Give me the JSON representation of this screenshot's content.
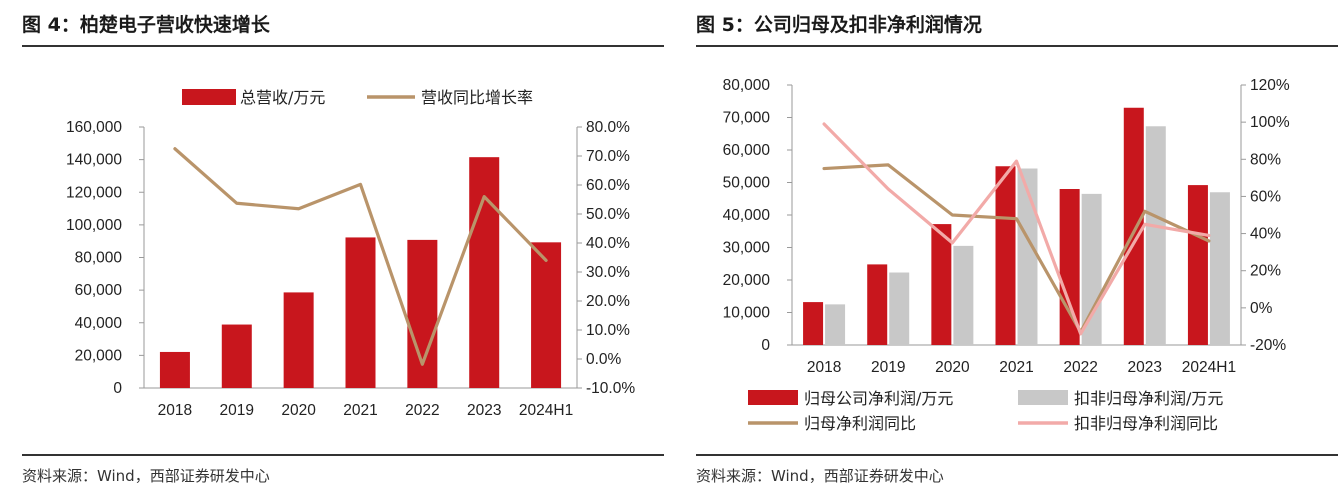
{
  "panels": [
    {
      "title": "图 4：柏楚电子营收快速增长",
      "source": "资料来源：Wind，西部证券研发中心"
    },
    {
      "title": "图 5：公司归母及扣非净利润情况",
      "source": "资料来源：Wind，西部证券研发中心"
    }
  ],
  "chart_data": [
    {
      "type": "bar",
      "title": "图 4：柏楚电子营收快速增长",
      "categories": [
        "2018",
        "2019",
        "2020",
        "2021",
        "2022",
        "2023",
        "2024H1"
      ],
      "series": [
        {
          "name": "总营收/万元",
          "kind": "bar",
          "axis": "left",
          "color": "#C8161D",
          "values": [
            22100,
            38900,
            58600,
            92300,
            90800,
            141500,
            89300
          ]
        },
        {
          "name": "营收同比增长率",
          "kind": "line",
          "axis": "right",
          "color": "#B9946A",
          "values": [
            0.725,
            0.537,
            0.518,
            0.602,
            -0.018,
            0.56,
            0.34
          ]
        }
      ],
      "left_axis": {
        "min": 0,
        "max": 160000,
        "step": 20000,
        "tick_labels": [
          "0",
          "20,000",
          "40,000",
          "60,000",
          "80,000",
          "100,000",
          "120,000",
          "140,000",
          "160,000"
        ]
      },
      "right_axis": {
        "min": -0.1,
        "max": 0.8,
        "step": 0.1,
        "tick_labels": [
          "-10.0%",
          "0.0%",
          "10.0%",
          "20.0%",
          "30.0%",
          "40.0%",
          "50.0%",
          "60.0%",
          "70.0%",
          "80.0%"
        ]
      },
      "legend": [
        {
          "label": "总营收/万元",
          "kind": "bar",
          "color": "#C8161D"
        },
        {
          "label": "营收同比增长率",
          "kind": "line",
          "color": "#B9946A"
        }
      ],
      "legend_position": "top"
    },
    {
      "type": "bar",
      "title": "图 5：公司归母及扣非净利润情况",
      "categories": [
        "2018",
        "2019",
        "2020",
        "2021",
        "2022",
        "2023",
        "2024H1"
      ],
      "series": [
        {
          "name": "归母公司净利润/万元",
          "kind": "bar",
          "axis": "left",
          "color": "#C8161D",
          "values": [
            13200,
            24800,
            37200,
            55000,
            48000,
            73000,
            49200
          ]
        },
        {
          "name": "扣非归母净利润/万元",
          "kind": "bar",
          "axis": "left",
          "color": "#C8C8C8",
          "values": [
            12500,
            22300,
            30500,
            54300,
            46500,
            67300,
            47000
          ]
        },
        {
          "name": "归母净利润同比",
          "kind": "line",
          "axis": "right",
          "color": "#B9946A",
          "values": [
            0.75,
            0.77,
            0.5,
            0.48,
            -0.13,
            0.52,
            0.36
          ]
        },
        {
          "name": "扣非归母净利润同比",
          "kind": "line",
          "axis": "right",
          "color": "#F2AAA8",
          "values": [
            0.99,
            0.64,
            0.35,
            0.79,
            -0.14,
            0.45,
            0.39
          ]
        }
      ],
      "left_axis": {
        "min": 0,
        "max": 80000,
        "step": 10000,
        "tick_labels": [
          "0",
          "10,000",
          "20,000",
          "30,000",
          "40,000",
          "50,000",
          "60,000",
          "70,000",
          "80,000"
        ]
      },
      "right_axis": {
        "min": -0.2,
        "max": 1.2,
        "step": 0.2,
        "tick_labels": [
          "-20%",
          "0%",
          "20%",
          "40%",
          "60%",
          "80%",
          "100%",
          "120%"
        ]
      },
      "legend": [
        {
          "label": "归母公司净利润/万元",
          "kind": "bar",
          "color": "#C8161D"
        },
        {
          "label": "扣非归母净利润/万元",
          "kind": "bar",
          "color": "#C8C8C8"
        },
        {
          "label": "归母净利润同比",
          "kind": "line",
          "color": "#B9946A"
        },
        {
          "label": "扣非归母净利润同比",
          "kind": "line",
          "color": "#F2AAA8"
        }
      ],
      "legend_position": "bottom"
    }
  ]
}
